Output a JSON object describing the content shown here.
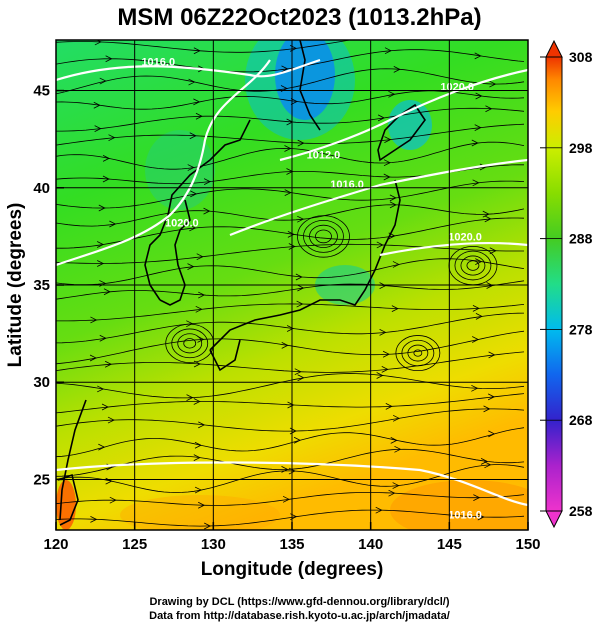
{
  "title": "MSM 06Z22Oct2023 (1013.2hPa)",
  "xlabel": "Longitude (degrees)",
  "ylabel": "Latitude  (degrees)",
  "credits": {
    "line1": "Drawing by DCL (https://www.gfd-dennou.org/library/dcl/)",
    "line2": "Data from http://database.rish.kyoto-u.ac.jp/arch/jmadata/"
  },
  "chart_data": {
    "type": "heatmap",
    "xlim": [
      120,
      150
    ],
    "ylim": [
      22.4,
      47.6
    ],
    "x_ticks": [
      120,
      125,
      130,
      135,
      140,
      145,
      150
    ],
    "y_ticks": [
      25,
      30,
      35,
      40,
      45
    ],
    "grid": true,
    "colorbar": {
      "min": 258,
      "max": 308,
      "ticks": [
        258,
        268,
        278,
        288,
        298,
        308
      ],
      "colors": [
        "#ee33cc",
        "#aa22cc",
        "#3322cc",
        "#1166ee",
        "#00bbee",
        "#22dd88",
        "#44cc22",
        "#88dd00",
        "#ccee00",
        "#ffcc00",
        "#ff8800",
        "#ee3300"
      ]
    },
    "isobar_labels": [
      {
        "text": "1016.0",
        "lon": 126.5,
        "lat": 46.3
      },
      {
        "text": "1020.0",
        "lon": 145.5,
        "lat": 45.0
      },
      {
        "text": "1012.0",
        "lon": 137.0,
        "lat": 41.5
      },
      {
        "text": "1016.0",
        "lon": 138.5,
        "lat": 40.0
      },
      {
        "text": "1020.0",
        "lon": 128.0,
        "lat": 38.0
      },
      {
        "text": "1020.0",
        "lon": 146.0,
        "lat": 37.3
      },
      {
        "text": "1016.0",
        "lon": 146.0,
        "lat": 23.0
      }
    ]
  }
}
